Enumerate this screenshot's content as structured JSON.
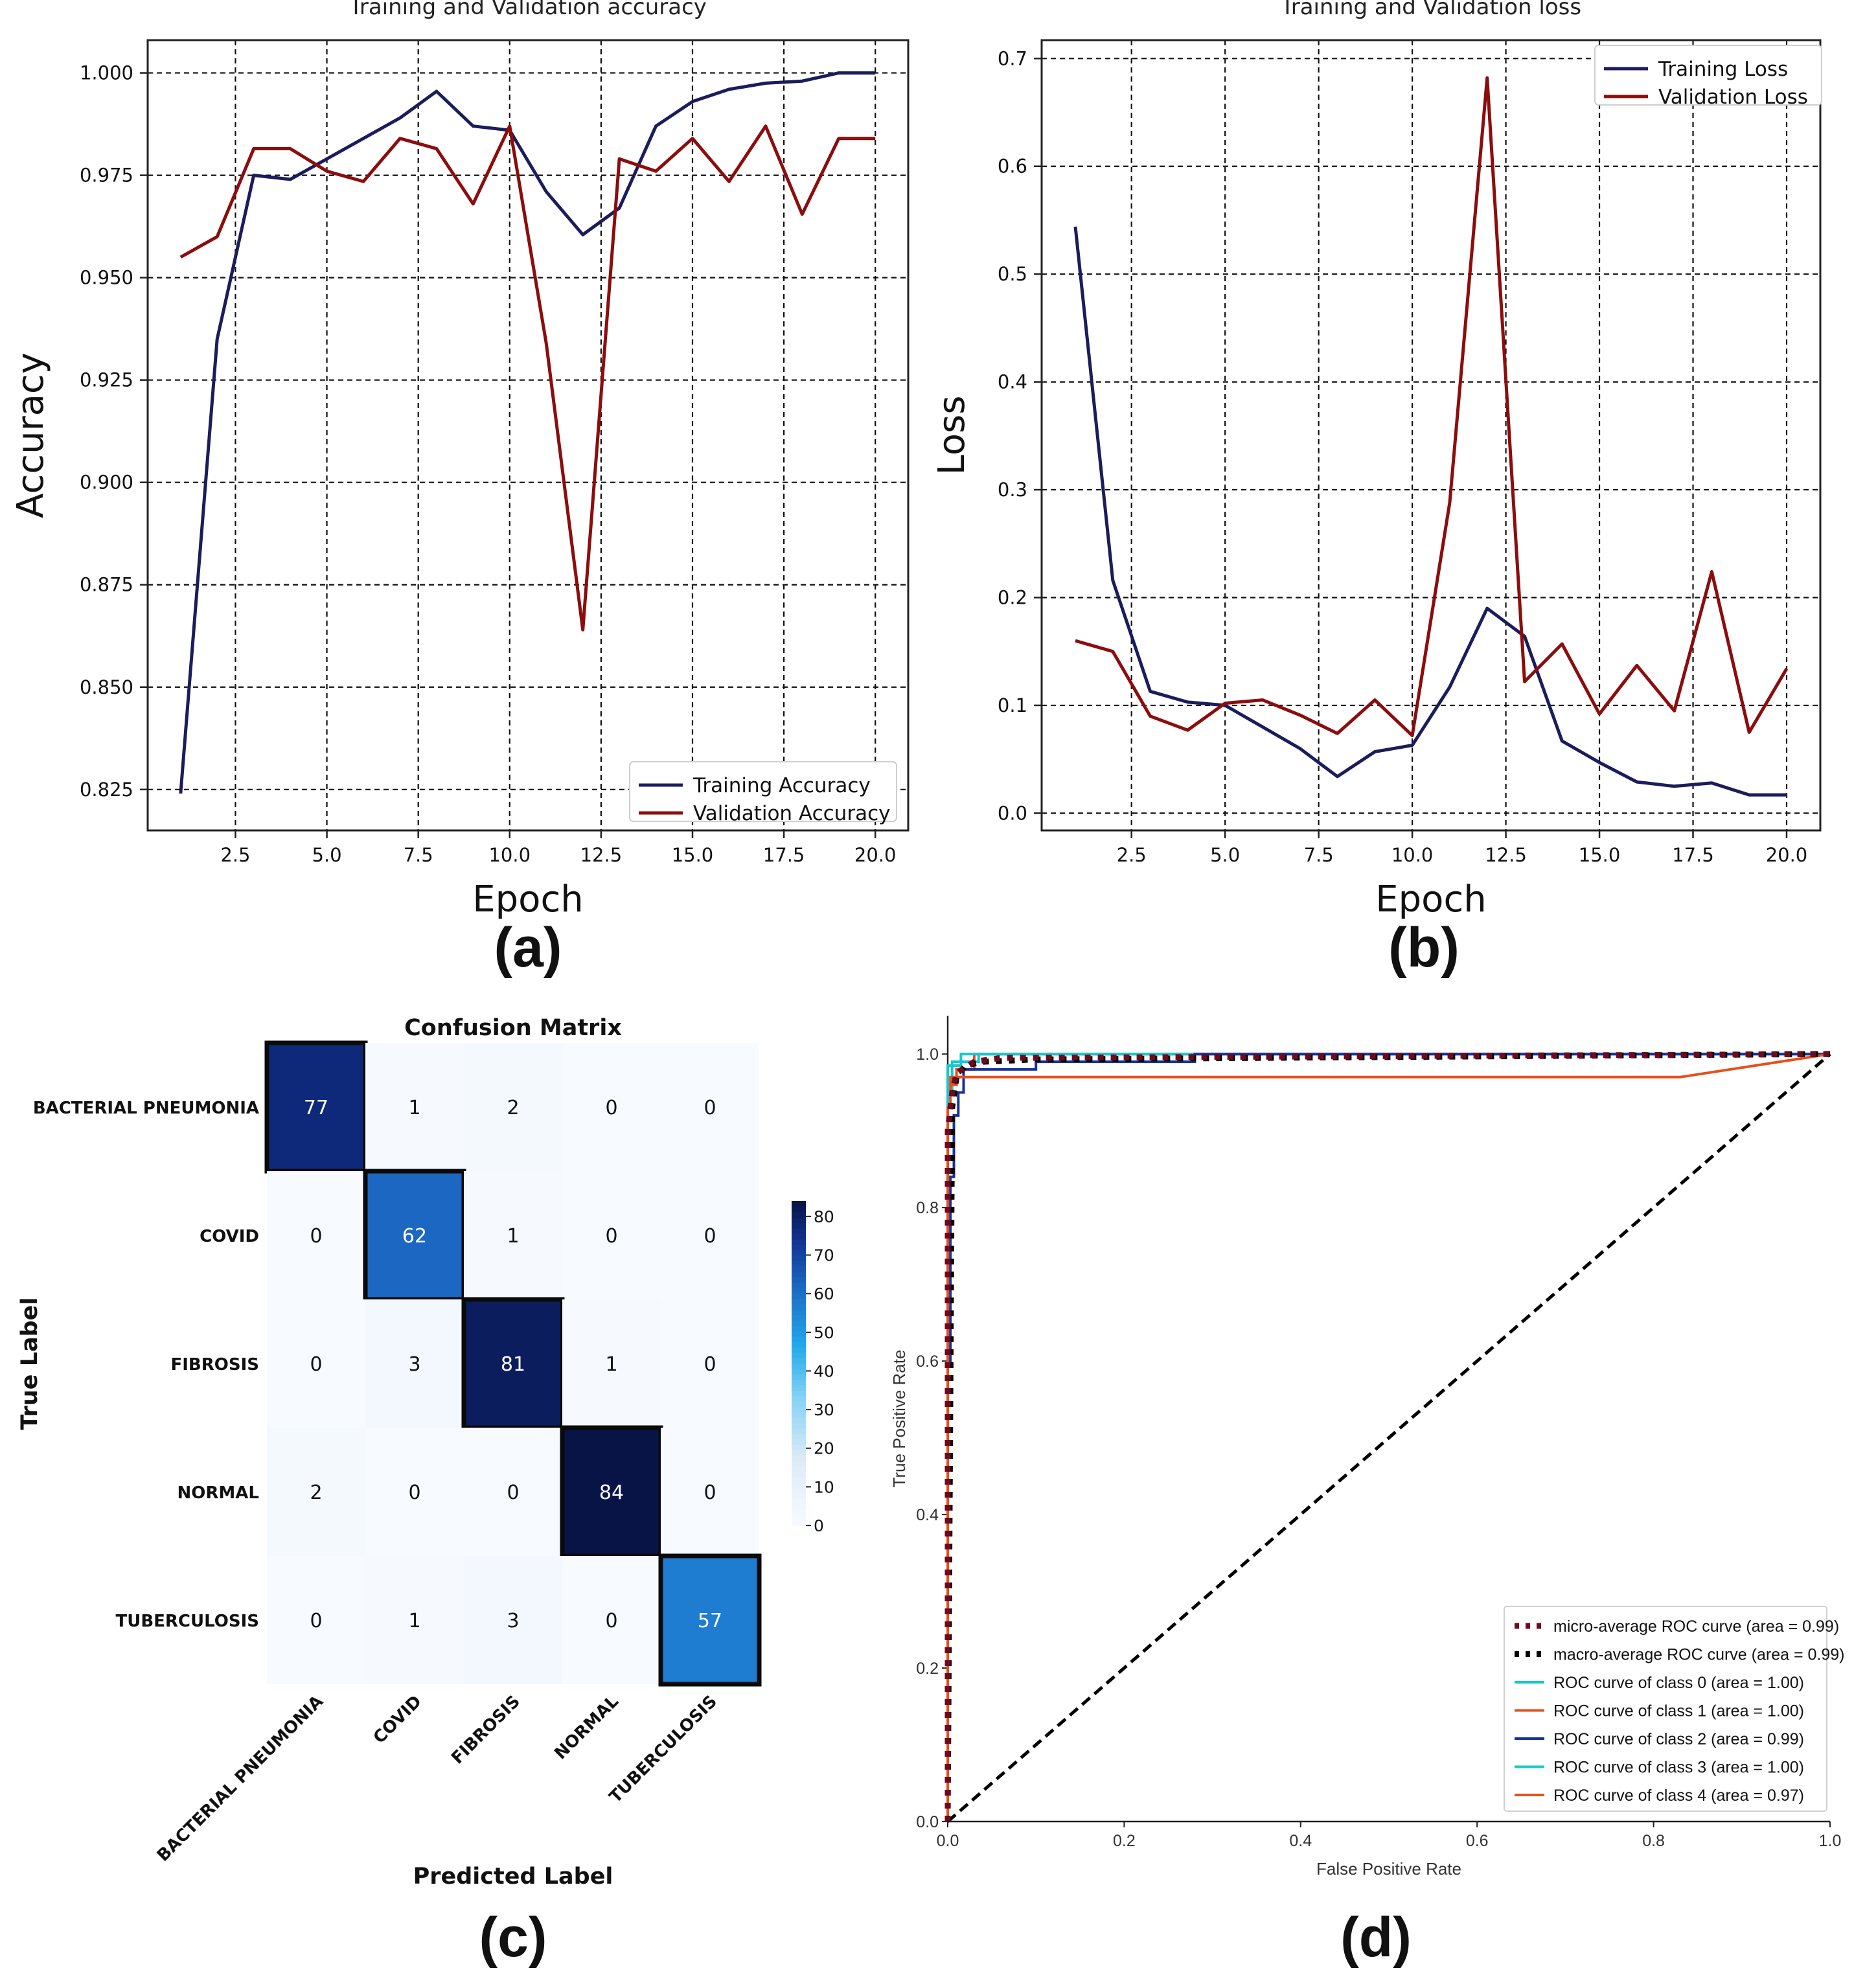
{
  "panels": {
    "a": "(a)",
    "b": "(b)",
    "c": "(c)",
    "d": "(d)"
  },
  "colors": {
    "train": "#1c1c5c",
    "val": "#8b0d0d",
    "grid": "#111111",
    "axis": "#222222",
    "roc_micro": "#6e0a1e",
    "roc_macro": "#000000",
    "roc_class0": "#17c8cf",
    "roc_class1": "#e5501c",
    "roc_class2": "#16329a",
    "roc_class3": "#17c8cf",
    "roc_class4": "#e5501c",
    "roc_chance": "#000000"
  },
  "chart_data": [
    {
      "id": "a",
      "type": "line",
      "title": "Training and Validation accuracy",
      "xlabel": "Epoch",
      "ylabel": "Accuracy",
      "xlim": [
        0.1,
        20.9
      ],
      "ylim": [
        0.815,
        1.008
      ],
      "xticks": [
        2.5,
        5.0,
        7.5,
        10.0,
        12.5,
        15.0,
        17.5,
        20.0
      ],
      "xtick_labels": [
        "2.5",
        "5.0",
        "7.5",
        "10.0",
        "12.5",
        "15.0",
        "17.5",
        "20.0"
      ],
      "yticks": [
        0.825,
        0.85,
        0.875,
        0.9,
        0.925,
        0.95,
        0.975,
        1.0
      ],
      "ytick_labels": [
        "0.825",
        "0.850",
        "0.875",
        "0.900",
        "0.925",
        "0.950",
        "0.975",
        "1.000"
      ],
      "grid": true,
      "legend_position": "bottom-right",
      "x": [
        1,
        2,
        3,
        4,
        5,
        6,
        7,
        8,
        9,
        10,
        11,
        12,
        13,
        14,
        15,
        16,
        17,
        18,
        19,
        20
      ],
      "series": [
        {
          "name": "Training Accuracy",
          "color_key": "train",
          "values": [
            0.824,
            0.935,
            0.975,
            0.974,
            0.979,
            0.984,
            0.989,
            0.9955,
            0.987,
            0.986,
            0.971,
            0.9605,
            0.967,
            0.987,
            0.993,
            0.996,
            0.9975,
            0.998,
            1.0,
            1.0
          ]
        },
        {
          "name": "Validation Accuracy",
          "color_key": "val",
          "values": [
            0.955,
            0.96,
            0.9815,
            0.9815,
            0.976,
            0.9735,
            0.984,
            0.9815,
            0.968,
            0.987,
            0.934,
            0.864,
            0.979,
            0.976,
            0.984,
            0.9735,
            0.987,
            0.9655,
            0.984,
            0.984
          ]
        }
      ]
    },
    {
      "id": "b",
      "type": "line",
      "title": "Training and Validation loss",
      "xlabel": "Epoch",
      "ylabel": "Loss",
      "xlim": [
        0.1,
        20.9
      ],
      "ylim": [
        -0.016,
        0.717
      ],
      "xticks": [
        2.5,
        5.0,
        7.5,
        10.0,
        12.5,
        15.0,
        17.5,
        20.0
      ],
      "xtick_labels": [
        "2.5",
        "5.0",
        "7.5",
        "10.0",
        "12.5",
        "15.0",
        "17.5",
        "20.0"
      ],
      "yticks": [
        0.0,
        0.1,
        0.2,
        0.3,
        0.4,
        0.5,
        0.6,
        0.7
      ],
      "ytick_labels": [
        "0.0",
        "0.1",
        "0.2",
        "0.3",
        "0.4",
        "0.5",
        "0.6",
        "0.7"
      ],
      "grid": true,
      "legend_position": "top-right",
      "x": [
        1,
        2,
        3,
        4,
        5,
        6,
        7,
        8,
        9,
        10,
        11,
        12,
        13,
        14,
        15,
        16,
        17,
        18,
        19,
        20
      ],
      "series": [
        {
          "name": "Training Loss",
          "color_key": "train",
          "values": [
            0.544,
            0.216,
            0.113,
            0.103,
            0.1,
            0.08,
            0.06,
            0.034,
            0.057,
            0.063,
            0.117,
            0.19,
            0.164,
            0.067,
            0.047,
            0.029,
            0.025,
            0.028,
            0.017,
            0.017
          ]
        },
        {
          "name": "Validation Loss",
          "color_key": "val",
          "values": [
            0.16,
            0.15,
            0.09,
            0.077,
            0.102,
            0.105,
            0.091,
            0.074,
            0.105,
            0.072,
            0.288,
            0.682,
            0.122,
            0.157,
            0.092,
            0.137,
            0.095,
            0.224,
            0.075,
            0.134
          ]
        }
      ]
    },
    {
      "id": "c",
      "type": "heatmap",
      "title": "Confusion Matrix",
      "xlabel": "Predicted Label",
      "ylabel": "True Label",
      "labels": [
        "BACTERIAL PNEUMONIA",
        "COVID",
        "FIBROSIS",
        "NORMAL",
        "TUBERCULOSIS"
      ],
      "matrix": [
        [
          77,
          1,
          2,
          0,
          0
        ],
        [
          0,
          62,
          1,
          0,
          0
        ],
        [
          0,
          3,
          81,
          1,
          0
        ],
        [
          2,
          0,
          0,
          84,
          0
        ],
        [
          0,
          1,
          3,
          0,
          57
        ]
      ],
      "colorbar_ticks": [
        0,
        10,
        20,
        30,
        40,
        50,
        60,
        70,
        80
      ],
      "colorbar_tick_labels": [
        "0",
        "10",
        "20",
        "30",
        "40",
        "50",
        "60",
        "70",
        "80"
      ],
      "vmin": 0,
      "vmax": 84
    },
    {
      "id": "d",
      "type": "line",
      "xlabel": "False Positive Rate",
      "ylabel": "True Positive Rate",
      "xlim": [
        0,
        1
      ],
      "ylim": [
        0,
        1.05
      ],
      "xticks": [
        0,
        0.2,
        0.4,
        0.6,
        0.8,
        1.0
      ],
      "xtick_labels": [
        "0.0",
        "0.2",
        "0.4",
        "0.6",
        "0.8",
        "1.0"
      ],
      "yticks": [
        0,
        0.2,
        0.4,
        0.6,
        0.8,
        1.0
      ],
      "ytick_labels": [
        "0.0",
        "0.2",
        "0.4",
        "0.6",
        "0.8",
        "1.0"
      ],
      "grid": false,
      "legend_position": "bottom-right",
      "series": [
        {
          "name": "micro-average ROC curve (area = 0.99)",
          "color_key": "roc_micro",
          "style": "dotted",
          "x": [
            0,
            0,
            0.005,
            0.01,
            0.02,
            0.03,
            0.06,
            1.0
          ],
          "y": [
            0,
            0.9,
            0.95,
            0.975,
            0.983,
            0.99,
            0.995,
            1.0
          ]
        },
        {
          "name": "macro-average ROC curve (area = 0.99)",
          "color_key": "roc_macro",
          "style": "dotted",
          "x": [
            0,
            0.005,
            0.01,
            0.02,
            0.04,
            0.1,
            1.0
          ],
          "y": [
            0,
            0.93,
            0.97,
            0.985,
            0.99,
            0.993,
            1.0
          ]
        },
        {
          "name": "ROC curve of class 0 (area = 1.00)",
          "color_key": "roc_class0",
          "style": "solid",
          "x": [
            0,
            0,
            0.005,
            0.005,
            0.035,
            0.035,
            1.0
          ],
          "y": [
            0,
            0.95,
            0.95,
            0.99,
            0.99,
            1.0,
            1.0
          ]
        },
        {
          "name": "ROC curve of class 1 (area = 1.00)",
          "color_key": "roc_class1",
          "style": "solid",
          "x": [
            0,
            0,
            0.01,
            0.01,
            0.03,
            0.03,
            1.0
          ],
          "y": [
            0,
            0.96,
            0.96,
            0.98,
            0.98,
            1.0,
            1.0
          ]
        },
        {
          "name": "ROC curve of class 2 (area = 0.99)",
          "color_key": "roc_class2",
          "style": "solid",
          "x": [
            0,
            0,
            0.003,
            0.003,
            0.007,
            0.007,
            0.012,
            0.012,
            0.018,
            0.018,
            0.1,
            0.1,
            0.28,
            0.28,
            1.0
          ],
          "y": [
            0,
            0.6,
            0.6,
            0.84,
            0.84,
            0.92,
            0.92,
            0.95,
            0.95,
            0.98,
            0.98,
            0.99,
            0.99,
            1.0,
            1.0
          ]
        },
        {
          "name": "ROC curve of class 3 (area = 1.00)",
          "color_key": "roc_class3",
          "style": "solid",
          "x": [
            0,
            0,
            0.015,
            0.015,
            1.0
          ],
          "y": [
            0,
            0.985,
            0.985,
            1.0,
            1.0
          ]
        },
        {
          "name": "ROC curve of class 4 (area = 0.97)",
          "color_key": "roc_class4",
          "style": "solid",
          "x": [
            0,
            0,
            0.003,
            0.003,
            0.83,
            1.0
          ],
          "y": [
            0,
            0.93,
            0.93,
            0.97,
            0.97,
            1.0
          ]
        },
        {
          "name": "",
          "color_key": "roc_chance",
          "style": "dashed",
          "x": [
            0,
            1.0
          ],
          "y": [
            0,
            1.0
          ]
        }
      ]
    }
  ]
}
